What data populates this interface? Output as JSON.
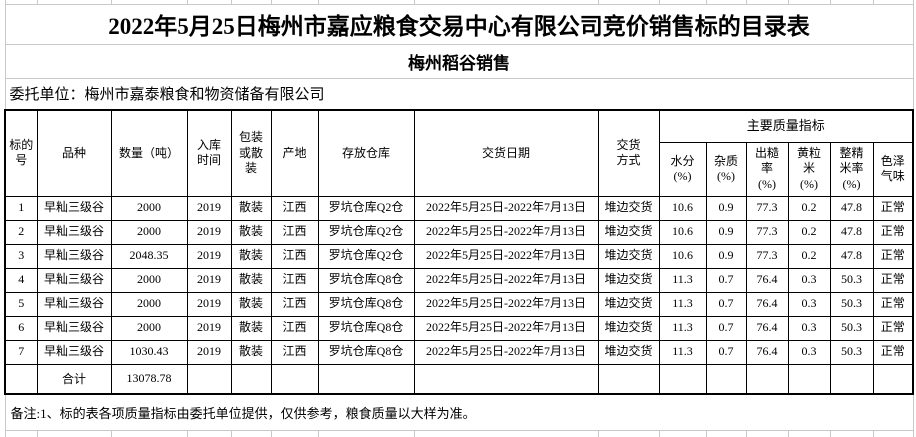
{
  "sheet": {
    "title": "2022年5月25日梅州市嘉应粮食交易中心有限公司竞价销售标的目录表",
    "subtitle": "梅州稻谷销售",
    "entrust_line": "委托单位：梅州市嘉泰粮食和物资储备有限公司",
    "note": "备注:1、标的表各项质量指标由委托单位提供，仅供参考，粮食质量以大样为准。"
  },
  "table": {
    "headers": {
      "lot_no": "标的\n号",
      "variety": "品种",
      "quantity": "数量（吨）",
      "storage_year": "入库\n时间",
      "packaging": "包装\n或散\n装",
      "origin": "产地",
      "warehouse": "存放仓库",
      "delivery_date": "交货日期",
      "delivery_method": "交货\n方式",
      "quality_group": "主要质量指标",
      "moisture": "水分\n(%)",
      "impurity": "杂质\n(%)",
      "brown_rice_rate": "出糙\n率\n(%)",
      "yellow_kernel": "黄粒\n米\n(%)",
      "head_rice_rate": "整精\n米率\n(%)",
      "color_odor": "色泽\n气味"
    },
    "rows": [
      [
        "1",
        "早籼三级谷",
        "2000",
        "2019",
        "散装",
        "江西",
        "罗坑仓库Q2仓",
        "2022年5月25日-2022年7月13日",
        "堆边交货",
        "10.6",
        "0.9",
        "77.3",
        "0.2",
        "47.8",
        "正常"
      ],
      [
        "2",
        "早籼三级谷",
        "2000",
        "2019",
        "散装",
        "江西",
        "罗坑仓库Q2仓",
        "2022年5月25日-2022年7月13日",
        "堆边交货",
        "10.6",
        "0.9",
        "77.3",
        "0.2",
        "47.8",
        "正常"
      ],
      [
        "3",
        "早籼三级谷",
        "2048.35",
        "2019",
        "散装",
        "江西",
        "罗坑仓库Q2仓",
        "2022年5月25日-2022年7月13日",
        "堆边交货",
        "10.6",
        "0.9",
        "77.3",
        "0.2",
        "47.8",
        "正常"
      ],
      [
        "4",
        "早籼三级谷",
        "2000",
        "2019",
        "散装",
        "江西",
        "罗坑仓库Q8仓",
        "2022年5月25日-2022年7月13日",
        "堆边交货",
        "11.3",
        "0.7",
        "76.4",
        "0.3",
        "50.3",
        "正常"
      ],
      [
        "5",
        "早籼三级谷",
        "2000",
        "2019",
        "散装",
        "江西",
        "罗坑仓库Q8仓",
        "2022年5月25日-2022年7月13日",
        "堆边交货",
        "11.3",
        "0.7",
        "76.4",
        "0.3",
        "50.3",
        "正常"
      ],
      [
        "6",
        "早籼三级谷",
        "2000",
        "2019",
        "散装",
        "江西",
        "罗坑仓库Q8仓",
        "2022年5月25日-2022年7月13日",
        "堆边交货",
        "11.3",
        "0.7",
        "76.4",
        "0.3",
        "50.3",
        "正常"
      ],
      [
        "7",
        "早籼三级谷",
        "1030.43",
        "2019",
        "散装",
        "江西",
        "罗坑仓库Q8仓",
        "2022年5月25日-2022年7月13日",
        "堆边交货",
        "11.3",
        "0.7",
        "76.4",
        "0.3",
        "50.3",
        "正常"
      ]
    ],
    "total_row": {
      "label": "合计",
      "quantity": "13078.78"
    }
  }
}
